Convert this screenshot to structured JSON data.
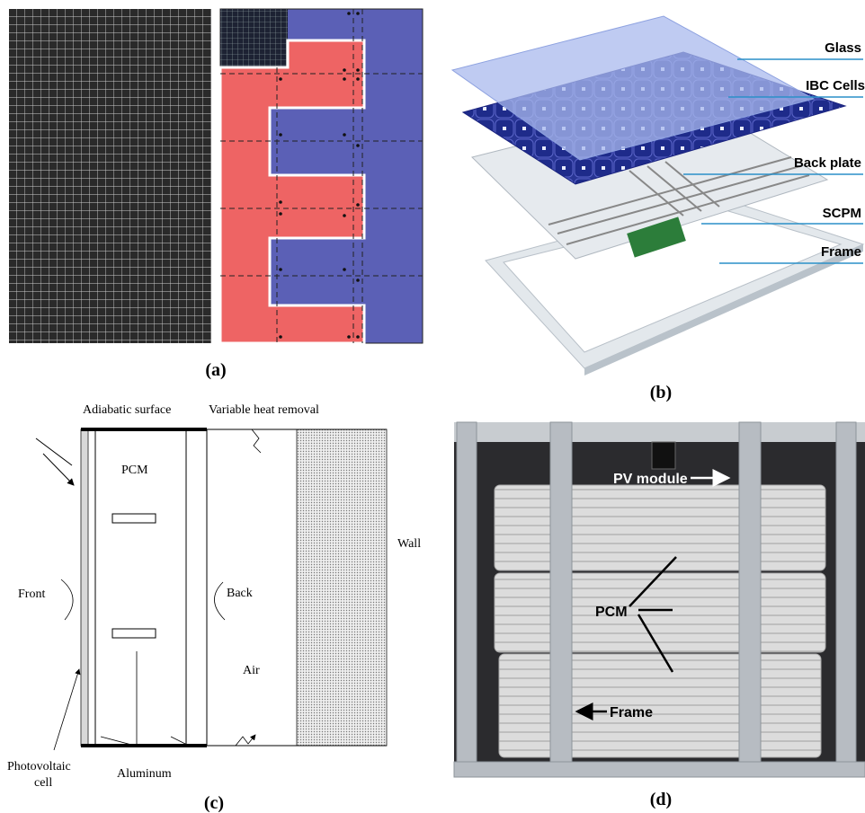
{
  "panel_a": {
    "label": "(a)"
  },
  "panel_b": {
    "label": "(b)",
    "callouts": [
      "Glass",
      "IBC Cells",
      "Back plate",
      "SCPM",
      "Frame"
    ]
  },
  "panel_c": {
    "label": "(c)",
    "top_left": "Adiabatic surface",
    "top_right": "Variable heat removal",
    "pcm": "PCM",
    "wall": "Wall",
    "front": "Front",
    "back": "Back",
    "air": "Air",
    "pv_cell": [
      "Photovoltaic",
      "cell"
    ],
    "aluminum": "Aluminum"
  },
  "panel_d": {
    "label": "(d)",
    "pv_module": "PV module",
    "pcm": "PCM",
    "frame": "Frame"
  }
}
